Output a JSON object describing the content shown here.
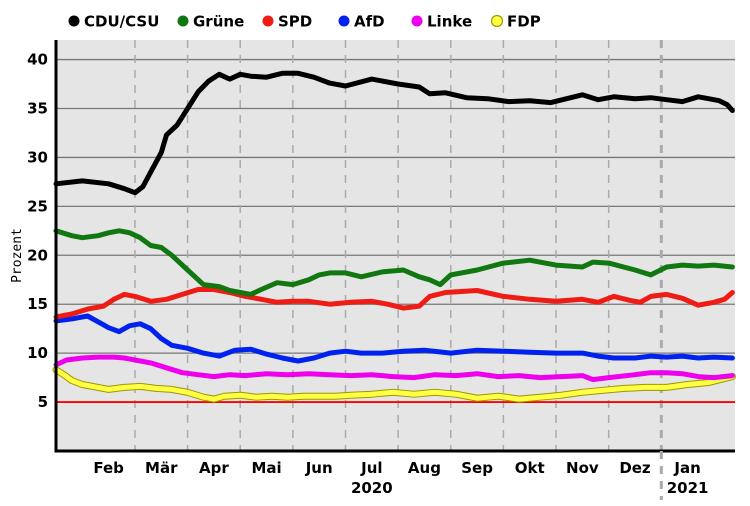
{
  "chart_data": {
    "type": "line",
    "title": "",
    "xlabel": "",
    "ylabel": "Prozent",
    "ylim": [
      0,
      42
    ],
    "yticks": [
      5,
      10,
      15,
      20,
      25,
      30,
      35,
      40
    ],
    "month_labels": [
      "Feb",
      "Mär",
      "Apr",
      "Mai",
      "Jun",
      "Jul",
      "Aug",
      "Sep",
      "Okt",
      "Nov",
      "Dez",
      "Jan"
    ],
    "year_labels": [
      {
        "label": "2020",
        "month_index": 5
      },
      {
        "label": "2021",
        "month_index": 11
      }
    ],
    "x_unit": "months since 2020-01-17",
    "xlim": [
      0,
      12.9
    ],
    "threshold": {
      "value": 5,
      "color": "#ff0000"
    },
    "colors": {
      "background": "#e5e5e5",
      "grid": "#777777",
      "month_grid": "#aaaaaa"
    },
    "series": [
      {
        "name": "CDU/CSU",
        "color": "#000000",
        "x": [
          0,
          0.5,
          1.0,
          1.3,
          1.5,
          1.65,
          1.8,
          2.0,
          2.1,
          2.3,
          2.5,
          2.7,
          2.9,
          3.1,
          3.3,
          3.5,
          3.7,
          4.0,
          4.3,
          4.6,
          4.9,
          5.2,
          5.5,
          6.0,
          6.5,
          6.9,
          7.1,
          7.4,
          7.8,
          8.2,
          8.6,
          9.0,
          9.4,
          9.7,
          10.0,
          10.3,
          10.6,
          11.0,
          11.3,
          11.6,
          11.9,
          12.2,
          12.4,
          12.6,
          12.75,
          12.85
        ],
        "values": [
          27.3,
          27.6,
          27.3,
          26.8,
          26.4,
          27.0,
          28.5,
          30.5,
          32.3,
          33.3,
          35.0,
          36.7,
          37.8,
          38.5,
          38.0,
          38.5,
          38.3,
          38.2,
          38.6,
          38.6,
          38.2,
          37.6,
          37.3,
          38.0,
          37.5,
          37.2,
          36.5,
          36.6,
          36.1,
          36.0,
          35.7,
          35.8,
          35.6,
          36.0,
          36.4,
          35.9,
          36.2,
          36.0,
          36.1,
          35.9,
          35.7,
          36.2,
          36.0,
          35.8,
          35.4,
          34.8
        ]
      },
      {
        "name": "Grüne",
        "color": "#117711",
        "x": [
          0,
          0.3,
          0.5,
          0.8,
          1.0,
          1.2,
          1.4,
          1.6,
          1.8,
          2.0,
          2.2,
          2.5,
          2.8,
          3.1,
          3.3,
          3.5,
          3.7,
          3.9,
          4.2,
          4.5,
          4.8,
          5.0,
          5.2,
          5.5,
          5.8,
          6.2,
          6.6,
          6.9,
          7.1,
          7.3,
          7.5,
          8.0,
          8.5,
          9.0,
          9.5,
          10.0,
          10.2,
          10.5,
          11.0,
          11.3,
          11.6,
          11.9,
          12.2,
          12.5,
          12.85
        ],
        "values": [
          22.5,
          22.0,
          21.8,
          22.0,
          22.3,
          22.5,
          22.3,
          21.8,
          21.0,
          20.8,
          20.0,
          18.5,
          17.0,
          16.8,
          16.4,
          16.2,
          16.0,
          16.5,
          17.2,
          17.0,
          17.5,
          18.0,
          18.2,
          18.2,
          17.8,
          18.3,
          18.5,
          17.8,
          17.5,
          17.0,
          18.0,
          18.5,
          19.2,
          19.5,
          19.0,
          18.8,
          19.3,
          19.2,
          18.5,
          18.0,
          18.8,
          19.0,
          18.9,
          19.0,
          18.8
        ]
      },
      {
        "name": "SPD",
        "color": "#ee1c14",
        "x": [
          0,
          0.3,
          0.6,
          0.9,
          1.1,
          1.3,
          1.5,
          1.8,
          2.1,
          2.4,
          2.7,
          3.0,
          3.3,
          3.6,
          3.9,
          4.2,
          4.5,
          4.8,
          5.2,
          5.6,
          6.0,
          6.3,
          6.6,
          6.9,
          7.1,
          7.4,
          8.0,
          8.5,
          9.0,
          9.5,
          10.0,
          10.3,
          10.6,
          10.9,
          11.1,
          11.3,
          11.6,
          11.9,
          12.2,
          12.5,
          12.7,
          12.85
        ],
        "values": [
          13.7,
          14.0,
          14.5,
          14.8,
          15.5,
          16.0,
          15.8,
          15.3,
          15.5,
          16.0,
          16.5,
          16.5,
          16.2,
          15.8,
          15.5,
          15.2,
          15.3,
          15.3,
          15.0,
          15.2,
          15.3,
          15.0,
          14.6,
          14.8,
          15.8,
          16.2,
          16.4,
          15.8,
          15.5,
          15.3,
          15.5,
          15.2,
          15.8,
          15.4,
          15.2,
          15.8,
          16.0,
          15.6,
          14.9,
          15.2,
          15.5,
          16.2
        ]
      },
      {
        "name": "AfD",
        "color": "#0022ee",
        "x": [
          0,
          0.3,
          0.6,
          0.8,
          1.0,
          1.2,
          1.4,
          1.6,
          1.8,
          2.0,
          2.2,
          2.5,
          2.8,
          3.1,
          3.4,
          3.7,
          4.0,
          4.3,
          4.6,
          4.9,
          5.2,
          5.5,
          5.8,
          6.2,
          6.6,
          7.0,
          7.5,
          8.0,
          8.5,
          9.0,
          9.5,
          10.0,
          10.3,
          10.6,
          11.0,
          11.3,
          11.6,
          11.9,
          12.2,
          12.5,
          12.85
        ],
        "values": [
          13.3,
          13.5,
          13.8,
          13.2,
          12.6,
          12.2,
          12.8,
          13.0,
          12.5,
          11.5,
          10.8,
          10.5,
          10.0,
          9.7,
          10.3,
          10.4,
          9.9,
          9.5,
          9.2,
          9.5,
          10.0,
          10.2,
          10.0,
          10.0,
          10.2,
          10.3,
          10.0,
          10.3,
          10.2,
          10.1,
          10.0,
          10.0,
          9.7,
          9.5,
          9.5,
          9.7,
          9.6,
          9.7,
          9.5,
          9.6,
          9.5
        ]
      },
      {
        "name": "Linke",
        "color": "#ee00ee",
        "x": [
          0,
          0.2,
          0.5,
          0.8,
          1.1,
          1.3,
          1.5,
          1.8,
          2.1,
          2.4,
          2.7,
          3.0,
          3.3,
          3.6,
          4.0,
          4.4,
          4.8,
          5.2,
          5.6,
          6.0,
          6.4,
          6.8,
          7.2,
          7.6,
          8.0,
          8.4,
          8.8,
          9.2,
          9.6,
          10.0,
          10.2,
          10.5,
          11.0,
          11.3,
          11.6,
          11.9,
          12.2,
          12.5,
          12.85
        ],
        "values": [
          8.8,
          9.3,
          9.5,
          9.6,
          9.6,
          9.5,
          9.3,
          9.0,
          8.5,
          8.0,
          7.8,
          7.6,
          7.8,
          7.7,
          7.9,
          7.8,
          7.9,
          7.8,
          7.7,
          7.8,
          7.6,
          7.5,
          7.8,
          7.7,
          7.9,
          7.6,
          7.7,
          7.5,
          7.6,
          7.7,
          7.3,
          7.5,
          7.8,
          8.0,
          8.0,
          7.9,
          7.6,
          7.5,
          7.7
        ]
      },
      {
        "name": "FDP",
        "color": "#ffff44",
        "x": [
          0,
          0.15,
          0.3,
          0.5,
          0.7,
          1.0,
          1.3,
          1.6,
          1.9,
          2.2,
          2.5,
          2.8,
          3.0,
          3.2,
          3.5,
          3.8,
          4.1,
          4.4,
          4.7,
          5.0,
          5.3,
          5.6,
          6.0,
          6.4,
          6.8,
          7.2,
          7.6,
          8.0,
          8.4,
          8.8,
          9.2,
          9.6,
          10.0,
          10.4,
          10.8,
          11.2,
          11.6,
          12.0,
          12.4,
          12.85
        ],
        "values": [
          8.3,
          7.8,
          7.2,
          6.8,
          6.6,
          6.3,
          6.5,
          6.6,
          6.4,
          6.3,
          6.0,
          5.5,
          5.3,
          5.6,
          5.7,
          5.5,
          5.6,
          5.5,
          5.6,
          5.6,
          5.6,
          5.7,
          5.8,
          6.0,
          5.8,
          6.0,
          5.8,
          5.4,
          5.6,
          5.3,
          5.5,
          5.7,
          6.0,
          6.2,
          6.4,
          6.5,
          6.5,
          6.8,
          7.0,
          7.6
        ]
      }
    ]
  }
}
